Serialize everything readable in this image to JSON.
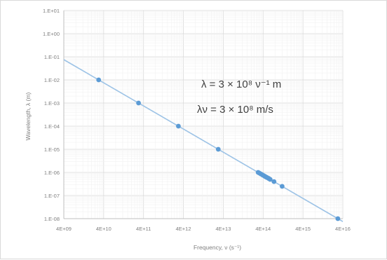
{
  "chart_data": {
    "type": "scatter",
    "xscale": "log",
    "yscale": "log",
    "xlim": [
      4000000000.0,
      4e+16
    ],
    "ylim": [
      1e-08,
      10.0
    ],
    "x_tick_labels": [
      "4E+09",
      "4E+10",
      "4E+11",
      "4E+12",
      "4E+13",
      "4E+14",
      "4E+15",
      "4E+16"
    ],
    "y_tick_labels": [
      "1.E+01",
      "1.E+00",
      "1.E-01",
      "1.E-02",
      "1.E-03",
      "1.E-04",
      "1.E-05",
      "1.E-06",
      "1.E-07",
      "1.E-08"
    ],
    "xlabel": "Frequency, ν (s⁻¹)",
    "ylabel": "Wavelength, λ (m)",
    "grid": true,
    "marker_color": "#5b9bd5",
    "trendline_color": "#9dc3e6",
    "trendline": {
      "x": [
        4000000000.0,
        4e+16
      ],
      "y": [
        0.075,
        7.5e-09
      ]
    },
    "series": [
      {
        "x": [
          30000000000.0,
          300000000000.0,
          3000000000000.0,
          30000000000000.0,
          300000000000000.0,
          320000000000000.0,
          350000000000000.0,
          380000000000000.0,
          400000000000000.0,
          430000000000000.0,
          460000000000000.0,
          500000000000000.0,
          550000000000000.0,
          600000000000000.0,
          750000000000000.0,
          1200000000000000.0,
          3e+16
        ],
        "y": [
          0.01,
          0.001,
          0.0001,
          1e-05,
          1e-06,
          9.4e-07,
          8.6e-07,
          7.9e-07,
          7.5e-07,
          7e-07,
          6.5e-07,
          6e-07,
          5.5e-07,
          5e-07,
          4e-07,
          2.5e-07,
          1e-08
        ]
      }
    ],
    "annotations": [
      "λ = 3 × 10⁸ ν⁻¹ m",
      "λν = 3 × 10⁸  m/s"
    ]
  }
}
